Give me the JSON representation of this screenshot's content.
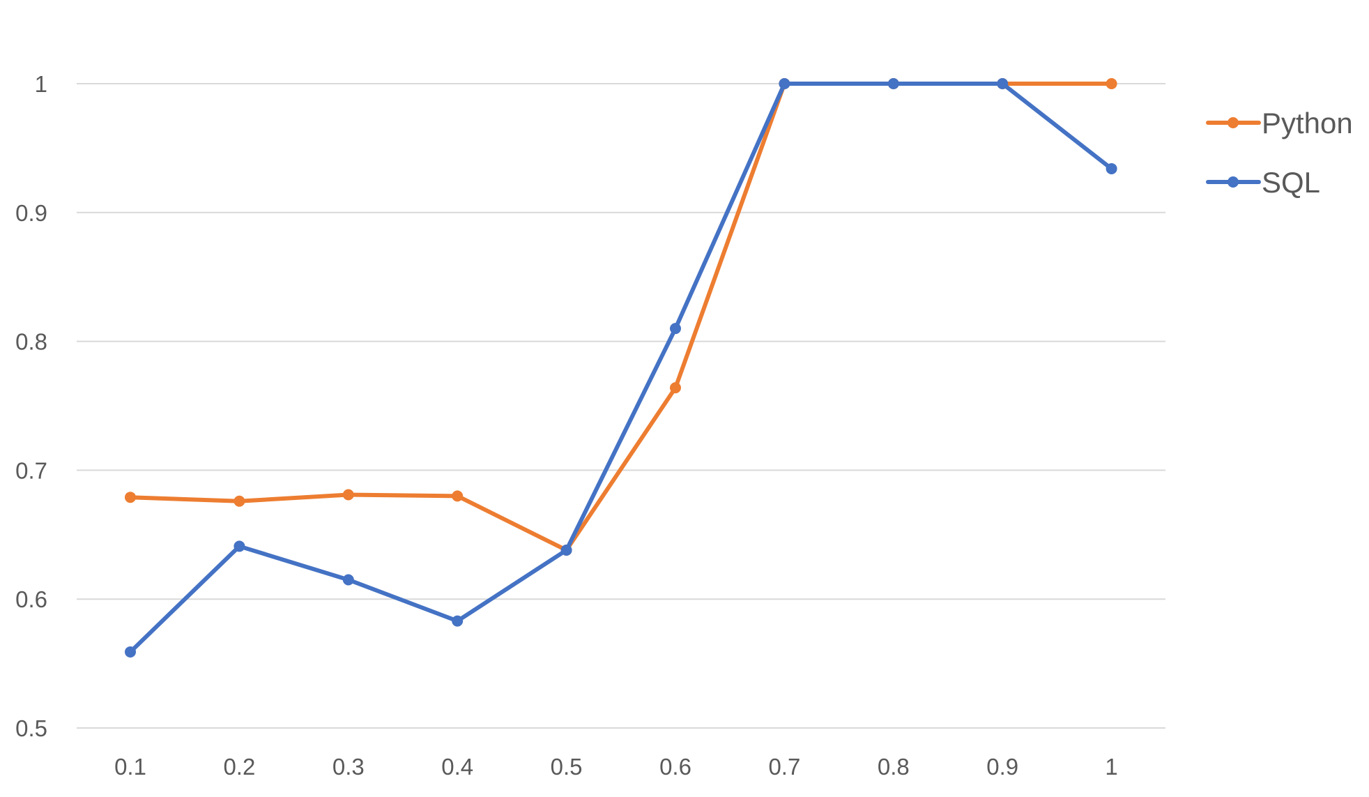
{
  "chart_data": {
    "type": "line",
    "categories": [
      "0.1",
      "0.2",
      "0.3",
      "0.4",
      "0.5",
      "0.6",
      "0.7",
      "0.8",
      "0.9",
      "1"
    ],
    "series": [
      {
        "name": "Python",
        "color": "#ED7D31",
        "values": [
          0.679,
          0.676,
          0.681,
          0.68,
          0.638,
          0.764,
          1.0,
          1.0,
          1.0,
          1.0
        ]
      },
      {
        "name": "SQL",
        "color": "#4472C4",
        "values": [
          0.559,
          0.641,
          0.615,
          0.583,
          0.638,
          0.81,
          1.0,
          1.0,
          1.0,
          0.934
        ]
      }
    ],
    "y_ticks": [
      "0.5",
      "0.6",
      "0.7",
      "0.8",
      "0.9",
      "1"
    ],
    "ylim": [
      0.5,
      1.0
    ],
    "grid": true,
    "gridline_color": "#D9D9D9",
    "legend_position": "right",
    "title": "",
    "xlabel": "",
    "ylabel": ""
  }
}
